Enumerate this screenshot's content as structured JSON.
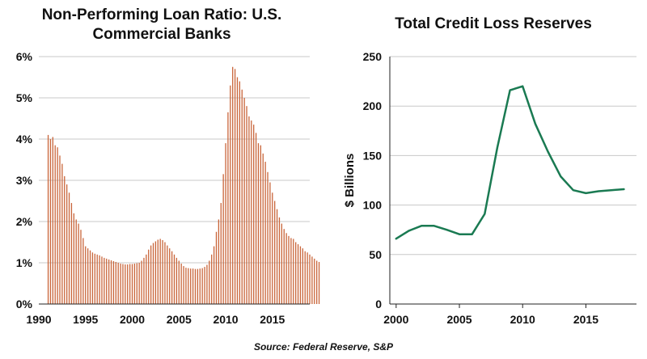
{
  "source": "Source: Federal Reserve, S&P",
  "colors": {
    "left_bars": "#c9653a",
    "right_line": "#1a7a52",
    "grid": "#c8c8c8",
    "axis": "#222222"
  },
  "chart_data": [
    {
      "type": "bar",
      "title": "Non-Performing Loan Ratio: U.S. Commercial Banks",
      "title_lines": [
        "Non-Performing Loan Ratio: U.S.",
        "Commercial Banks"
      ],
      "xlabel": "",
      "ylabel": "",
      "xlim": [
        1990,
        2019
      ],
      "ylim": [
        0,
        6
      ],
      "x_ticks": [
        1990,
        1995,
        2000,
        2005,
        2010,
        2015
      ],
      "y_ticks": [
        0,
        1,
        2,
        3,
        4,
        5,
        6
      ],
      "y_tick_labels": [
        "0%",
        "1%",
        "2%",
        "3%",
        "4%",
        "5%",
        "6%"
      ],
      "grid": true,
      "x_start": 1991.0,
      "x_step": 0.25,
      "values": [
        4.1,
        4.0,
        4.05,
        3.85,
        3.8,
        3.6,
        3.4,
        3.1,
        2.9,
        2.7,
        2.45,
        2.2,
        2.05,
        1.95,
        1.8,
        1.6,
        1.4,
        1.35,
        1.3,
        1.25,
        1.22,
        1.2,
        1.18,
        1.15,
        1.12,
        1.1,
        1.08,
        1.06,
        1.04,
        1.02,
        1.0,
        0.98,
        0.97,
        0.96,
        0.96,
        0.97,
        0.97,
        0.98,
        0.99,
        1.0,
        1.05,
        1.12,
        1.2,
        1.32,
        1.42,
        1.48,
        1.52,
        1.56,
        1.58,
        1.55,
        1.5,
        1.42,
        1.35,
        1.28,
        1.2,
        1.12,
        1.05,
        0.98,
        0.92,
        0.88,
        0.87,
        0.86,
        0.86,
        0.85,
        0.85,
        0.86,
        0.87,
        0.9,
        0.95,
        1.05,
        1.2,
        1.4,
        1.75,
        2.05,
        2.45,
        3.15,
        3.9,
        4.65,
        5.3,
        5.75,
        5.7,
        5.5,
        5.4,
        5.2,
        5.0,
        4.8,
        4.55,
        4.45,
        4.35,
        4.15,
        3.9,
        3.85,
        3.65,
        3.45,
        3.2,
        2.95,
        2.7,
        2.5,
        2.3,
        2.1,
        1.95,
        1.82,
        1.72,
        1.65,
        1.6,
        1.58,
        1.5,
        1.45,
        1.4,
        1.35,
        1.28,
        1.25,
        1.2,
        1.15,
        1.1,
        1.05,
        1.02
      ]
    },
    {
      "type": "line",
      "title": "Total Credit Loss Reserves",
      "xlabel": "",
      "ylabel": "$ Billions",
      "xlim": [
        1999.5,
        2019
      ],
      "ylim": [
        0,
        250
      ],
      "x_ticks": [
        2000,
        2005,
        2010,
        2015
      ],
      "y_ticks": [
        0,
        50,
        100,
        150,
        200,
        250
      ],
      "grid": true,
      "x": [
        2000,
        2001,
        2002,
        2003,
        2004,
        2005,
        2006,
        2007,
        2008,
        2009,
        2010,
        2011,
        2012,
        2013,
        2014,
        2015,
        2016,
        2017,
        2018
      ],
      "series": [
        {
          "values": [
            66,
            74,
            79,
            79,
            75,
            70.5,
            70.5,
            91,
            158,
            216,
            220,
            182,
            154,
            129,
            115,
            112,
            114,
            115,
            116
          ]
        }
      ]
    }
  ]
}
